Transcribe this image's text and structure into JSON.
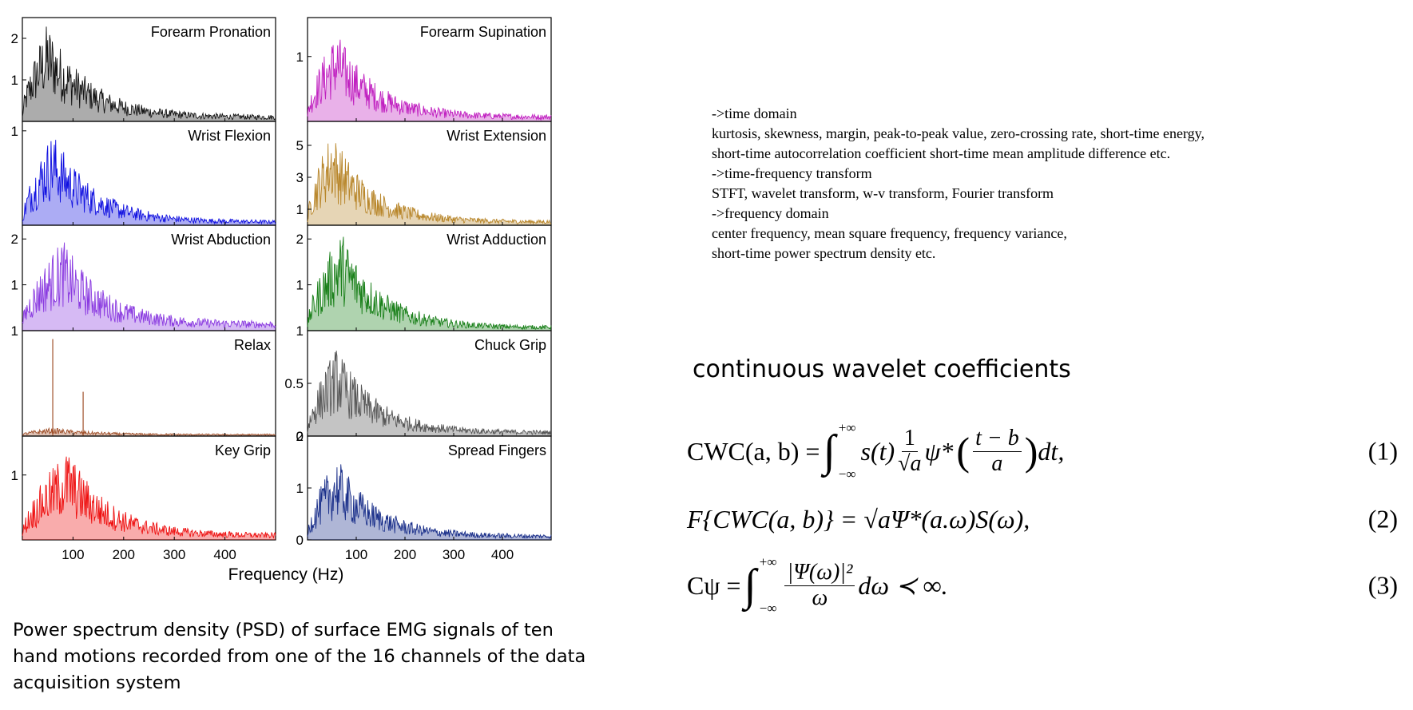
{
  "chart_data": {
    "type": "area",
    "layout": "5 rows x 2 columns small multiples",
    "xlabel": "Frequency (Hz)",
    "xlim": [
      0,
      500
    ],
    "x_ticks": [
      100,
      200,
      300,
      400
    ],
    "x_tick_labels": [
      "100",
      "200",
      "300",
      "400"
    ],
    "grid": false,
    "panels": [
      {
        "title": "Forearm Pronation",
        "color": "#111111",
        "ylim": [
          0,
          2.5
        ],
        "y_ticks": [
          1,
          2
        ],
        "y_tick_labels": [
          "1",
          "2"
        ],
        "peak_hz": 50,
        "peak_value": 2.4,
        "baseline": 0.15
      },
      {
        "title": "Forearm Supination",
        "color": "#c020c0",
        "ylim": [
          0,
          1.6
        ],
        "y_ticks": [
          1
        ],
        "y_tick_labels": [
          "1"
        ],
        "peak_hz": 60,
        "peak_value": 1.4,
        "baseline": 0.1
      },
      {
        "title": "Wrist Flexion",
        "color": "#1010e0",
        "ylim": [
          0,
          1.1
        ],
        "y_ticks": [
          1
        ],
        "y_tick_labels": [
          "1"
        ],
        "peak_hz": 60,
        "peak_value": 1.0,
        "baseline": 0.05
      },
      {
        "title": "Wrist Extension",
        "color": "#b8862a",
        "ylim": [
          0,
          6.5
        ],
        "y_ticks": [
          1,
          3,
          5
        ],
        "y_tick_labels": [
          "1",
          "3",
          "5"
        ],
        "peak_hz": 50,
        "peak_value": 6.0,
        "baseline": 0.3
      },
      {
        "title": "Wrist Abduction",
        "color": "#8a3ae0",
        "ylim": [
          0,
          2.3
        ],
        "y_ticks": [
          1,
          2
        ],
        "y_tick_labels": [
          "1",
          "2"
        ],
        "peak_hz": 80,
        "peak_value": 2.0,
        "baseline": 0.2
      },
      {
        "title": "Wrist Adduction",
        "color": "#1a801a",
        "ylim": [
          0,
          2.3
        ],
        "y_ticks": [
          1,
          2
        ],
        "y_tick_labels": [
          "1",
          "2"
        ],
        "peak_hz": 70,
        "peak_value": 2.2,
        "baseline": 0.1
      },
      {
        "title": "Relax",
        "color": "#a0502a",
        "ylim": [
          0,
          1.0
        ],
        "y_ticks": [
          1
        ],
        "y_tick_labels": [
          "1"
        ],
        "peak_hz": 60,
        "peak_value": 0.08,
        "baseline": 0.02,
        "spikes": [
          [
            60,
            0.92
          ],
          [
            120,
            0.42
          ]
        ]
      },
      {
        "title": "Chuck Grip",
        "color": "#555555",
        "ylim": [
          0,
          1.0
        ],
        "y_ticks": [
          0,
          0.5,
          1
        ],
        "y_tick_labels": [
          "0",
          "0.5",
          "1"
        ],
        "peak_hz": 60,
        "peak_value": 0.85,
        "baseline": 0.05
      },
      {
        "title": "Key Grip",
        "color": "#ee1010",
        "ylim": [
          0,
          1.6
        ],
        "y_ticks": [
          1
        ],
        "y_tick_labels": [
          "1"
        ],
        "peak_hz": 90,
        "peak_value": 1.4,
        "baseline": 0.1
      },
      {
        "title": "Spread Fingers",
        "color": "#1a2f8a",
        "ylim": [
          0,
          2.0
        ],
        "y_ticks": [
          0,
          1,
          2
        ],
        "y_tick_labels": [
          "0",
          "1",
          "2"
        ],
        "peak_hz": 60,
        "peak_value": 1.6,
        "baseline": 0.1
      }
    ]
  },
  "caption": "Power spectrum density (PSD) of surface EMG signals of ten hand motions recorded from one of the 16 channels of the data acquisition system",
  "notes": [
    "->time domain",
    "kurtosis, skewness, margin, peak-to-peak value, zero-crossing rate, short-time energy,",
    "short-time autocorrelation coefficient short-time mean amplitude difference etc.",
    "->time-frequency transform",
    "STFT, wavelet transform, w-v transform, Fourier transform",
    "->frequency domain",
    "center frequency, mean square frequency, frequency variance,",
    "short-time power spectrum density etc."
  ],
  "cwt_heading": "continuous wavelet coefficients",
  "equations": [
    {
      "number": "(1)",
      "lhs": "CWC(a, b) =",
      "upper": "+∞",
      "lower": "−∞",
      "integrand": "s(t)",
      "frac1_top": "1",
      "frac1_bottom": "√a",
      "psi": "ψ*",
      "frac2_top": "t − b",
      "frac2_bottom": "a",
      "tail": "dt,"
    },
    {
      "number": "(2)",
      "text": "F{CWC(a, b)} = √aΨ*(a.ω)S(ω),"
    },
    {
      "number": "(3)",
      "lhs": "Cψ =",
      "upper": "+∞",
      "lower": "−∞",
      "frac_top": "|Ψ(ω)|²",
      "frac_bottom": "ω",
      "tail": "dω ≺ ∞."
    }
  ]
}
